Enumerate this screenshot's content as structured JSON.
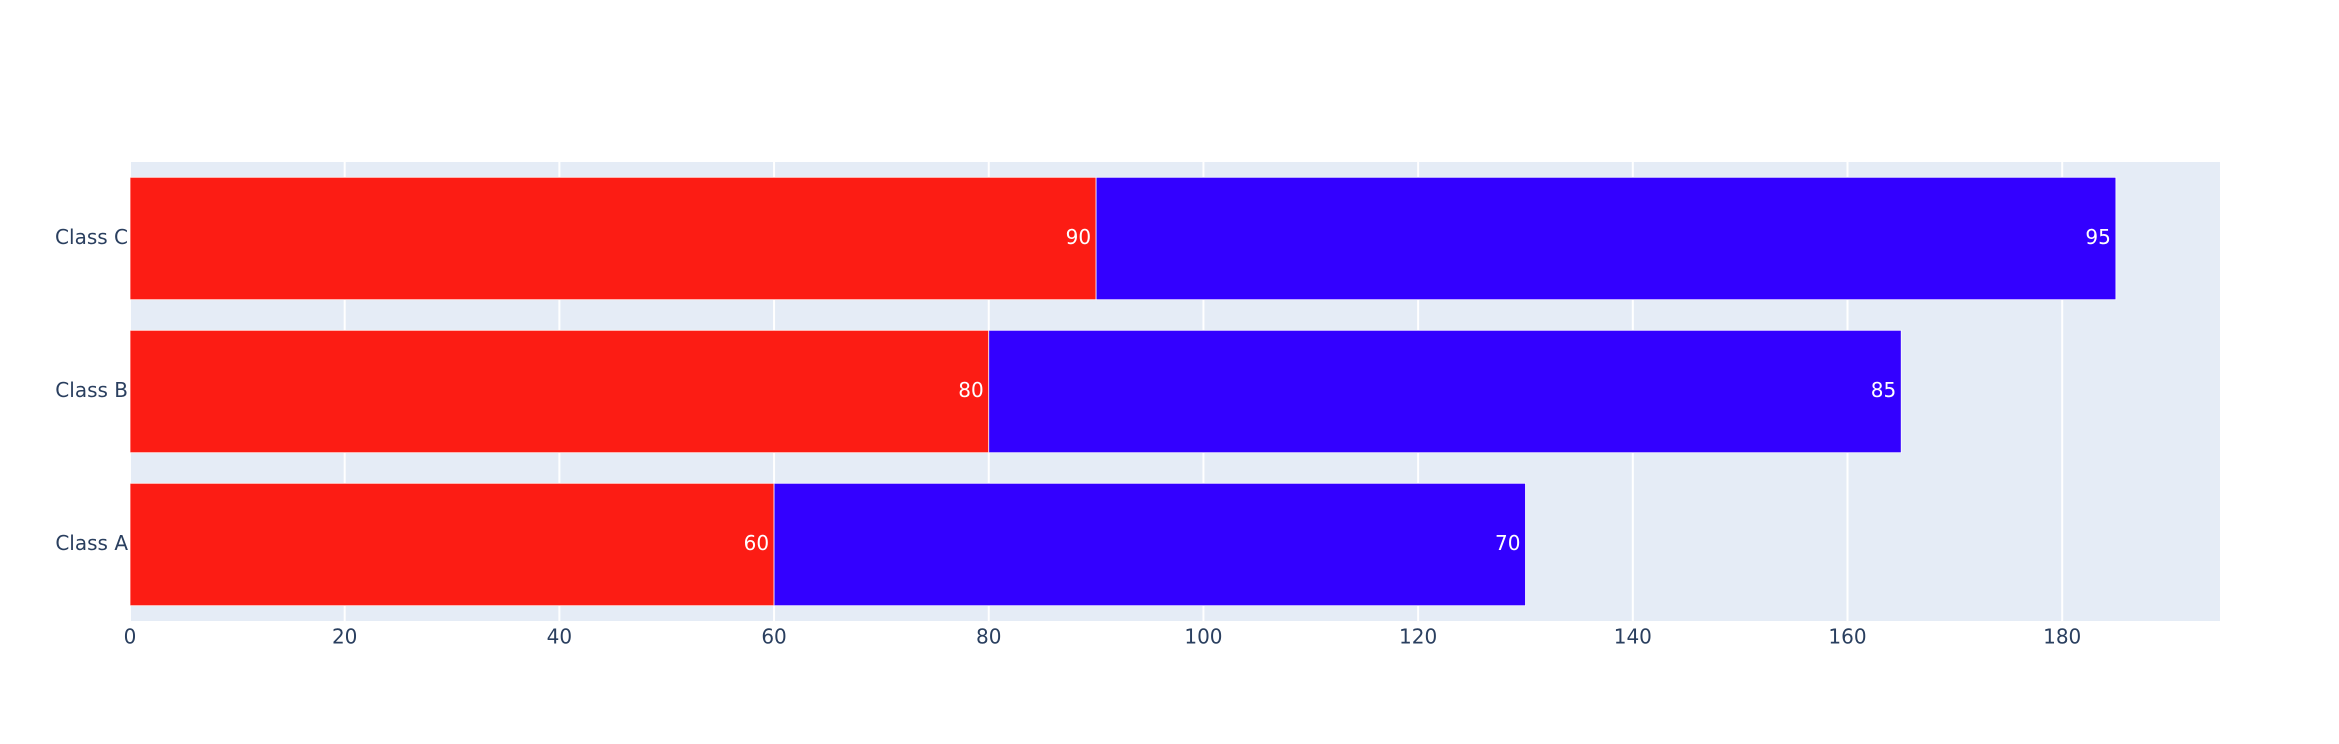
{
  "chart_data": {
    "type": "stacked-hbar",
    "categories": [
      "Class A",
      "Class B",
      "Class C"
    ],
    "series": [
      {
        "color": "#fc1c14",
        "values": [
          60,
          80,
          90
        ]
      },
      {
        "color": "#3300ff",
        "values": [
          70,
          85,
          95
        ]
      }
    ],
    "xlim": [
      0,
      194.7
    ],
    "xticks": [
      0,
      20,
      40,
      60,
      80,
      100,
      120,
      140,
      160,
      180
    ],
    "grid": true
  }
}
